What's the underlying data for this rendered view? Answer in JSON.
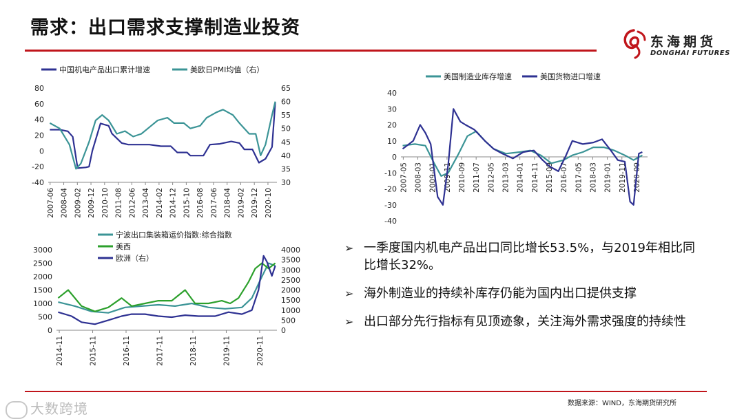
{
  "page": {
    "title": "需求：出口需求支撑制造业投资",
    "source": "数据来源：WIND，东海期货研究所",
    "watermark": "大数跨境"
  },
  "logo": {
    "cn": "东海期货",
    "en": "DONGHAI FUTURES",
    "color": "#c0151b"
  },
  "bullets": [
    {
      "text": "一季度国内机电产品出口同比增长53.5%，与2019年相比同比增长32%。"
    },
    {
      "text": "海外制造业的持续补库存仍能为国内出口提供支撑"
    },
    {
      "text": "出口部分先行指标有见顶迹象，关注海外需求强度的持续性"
    }
  ],
  "chart_data": [
    {
      "type": "line",
      "legend": [
        "中国机电产品出口累计增速",
        "美欧日PMI均值（右）"
      ],
      "colors": [
        "#2e3192",
        "#3b9496"
      ],
      "x_ticks": [
        "2007-06",
        "2008-04",
        "2009-02",
        "2009-12",
        "2010-10",
        "2011-08",
        "2012-06",
        "2013-04",
        "2014-02",
        "2014-12",
        "2015-10",
        "2016-08",
        "2017-06",
        "2018-04",
        "2019-02",
        "2019-12",
        "2020-10"
      ],
      "y_left": {
        "range": [
          -40,
          80
        ],
        "ticks": [
          80,
          60,
          40,
          20,
          0,
          -20,
          -40
        ]
      },
      "y_right": {
        "range": [
          30,
          65
        ],
        "ticks": [
          65,
          60,
          55,
          50,
          45,
          40,
          35,
          30
        ]
      },
      "series": [
        {
          "name": "中国机电产品出口累计增速",
          "axis": "left",
          "x": [
            2007.4,
            2008.0,
            2008.5,
            2008.8,
            2009.1,
            2009.6,
            2009.8,
            2010.0,
            2010.5,
            2011.0,
            2011.2,
            2011.8,
            2012.2,
            2012.8,
            2013.5,
            2014.2,
            2014.8,
            2015.2,
            2015.8,
            2016.0,
            2016.8,
            2017.2,
            2017.8,
            2018.5,
            2019.0,
            2019.3,
            2019.8,
            2020.2,
            2020.6,
            2021.0,
            2021.2
          ],
          "values": [
            27,
            27,
            25,
            18,
            -22,
            -21,
            -20,
            0,
            35,
            32,
            22,
            10,
            8,
            8,
            8,
            6,
            6,
            -2,
            -2,
            -6,
            -6,
            8,
            9,
            12,
            10,
            2,
            2,
            -15,
            -10,
            5,
            62
          ]
        },
        {
          "name": "美欧日PMI均值（右）",
          "axis": "right",
          "x": [
            2007.4,
            2008.0,
            2008.6,
            2009.0,
            2009.3,
            2009.8,
            2010.2,
            2010.6,
            2011.0,
            2011.5,
            2012.0,
            2012.5,
            2013.0,
            2013.6,
            2014.0,
            2014.6,
            2015.0,
            2015.6,
            2016.0,
            2016.6,
            2017.0,
            2017.6,
            2018.0,
            2018.6,
            2019.0,
            2019.6,
            2020.0,
            2020.3,
            2020.6,
            2021.0,
            2021.2
          ],
          "values": [
            52,
            50,
            44,
            35,
            37,
            45,
            53,
            55,
            53,
            48,
            49,
            47,
            48,
            51,
            53,
            54,
            52,
            52,
            50,
            51,
            54,
            56,
            57,
            55,
            52,
            48,
            48,
            40,
            44,
            55,
            60
          ]
        }
      ]
    },
    {
      "type": "line",
      "legend": [
        "美国制造业库存增速",
        "美国货物进口增速"
      ],
      "colors": [
        "#3b9496",
        "#2e3192"
      ],
      "x_ticks": [
        "2007-05",
        "2008-03",
        "2009-01",
        "2009-11",
        "2010-09",
        "2011-07",
        "2012-05",
        "2013-03",
        "2014-01",
        "2014-11",
        "2015-09",
        "2016-07",
        "2017-05",
        "2018-03",
        "2019-01",
        "2019-11",
        "2020-09"
      ],
      "y_axis": {
        "range": [
          -40,
          40
        ],
        "ticks": [
          40,
          30,
          20,
          10,
          0,
          -10,
          -20,
          -30,
          -40
        ]
      },
      "series": [
        {
          "name": "美国制造业库存增速",
          "x": [
            2007.3,
            2008.0,
            2008.6,
            2009.1,
            2009.5,
            2009.9,
            2010.5,
            2011.0,
            2011.5,
            2012.0,
            2012.5,
            2013.2,
            2014.0,
            2014.6,
            2015.2,
            2015.8,
            2016.5,
            2017.0,
            2017.6,
            2018.2,
            2018.8,
            2019.4,
            2020.0,
            2020.5,
            2021.0
          ],
          "values": [
            7,
            8,
            7,
            -4,
            -12,
            -10,
            2,
            13,
            16,
            10,
            5,
            2,
            3,
            4,
            1,
            -4,
            -2,
            1,
            3,
            6,
            6,
            4,
            1,
            -2,
            1
          ]
        },
        {
          "name": "美国货物进口增速",
          "x": [
            2007.3,
            2007.9,
            2008.3,
            2008.6,
            2008.9,
            2009.3,
            2009.6,
            2009.9,
            2010.2,
            2010.6,
            2010.9,
            2011.4,
            2012.0,
            2012.5,
            2013.0,
            2013.6,
            2014.2,
            2014.8,
            2015.3,
            2015.7,
            2016.2,
            2016.6,
            2017.0,
            2017.6,
            2018.2,
            2018.7,
            2019.2,
            2019.6,
            2020.0,
            2020.3,
            2020.5,
            2020.8,
            2021.0
          ],
          "values": [
            5,
            10,
            20,
            15,
            8,
            -25,
            -30,
            -5,
            30,
            22,
            20,
            17,
            10,
            5,
            2,
            -1,
            3,
            4,
            -2,
            -6,
            -9,
            0,
            10,
            8,
            9,
            11,
            4,
            -2,
            -3,
            -28,
            -30,
            2,
            3
          ]
        }
      ]
    },
    {
      "type": "line",
      "legend": [
        "宁波出口集装箱运价指数:综合指数",
        "美西",
        "欧洲（右）"
      ],
      "colors": [
        "#3b9496",
        "#2ca02c",
        "#2e3192"
      ],
      "x_ticks": [
        "2014-11",
        "2015-11",
        "2016-11",
        "2017-11",
        "2018-11",
        "2019-11",
        "2020-11"
      ],
      "y_left": {
        "range": [
          0,
          3000
        ],
        "ticks": [
          3000,
          2500,
          2000,
          1500,
          1000,
          500,
          0
        ]
      },
      "y_right": {
        "range": [
          0,
          4000
        ],
        "ticks": [
          4000,
          3500,
          3000,
          2500,
          2000,
          1500,
          1000,
          500,
          0
        ]
      },
      "series": [
        {
          "name": "宁波出口集装箱运价指数:综合指数",
          "axis": "left",
          "x": [
            2014.8,
            2015.3,
            2015.8,
            2016.3,
            2016.8,
            2017.3,
            2017.8,
            2018.3,
            2018.8,
            2019.3,
            2019.8,
            2020.3,
            2020.6,
            2020.9,
            2021.1,
            2021.3
          ],
          "values": [
            1050,
            900,
            700,
            650,
            850,
            900,
            950,
            900,
            1000,
            850,
            800,
            850,
            1200,
            2000,
            2500,
            2400
          ]
        },
        {
          "name": "美西",
          "axis": "left",
          "x": [
            2014.8,
            2015.1,
            2015.5,
            2015.9,
            2016.3,
            2016.7,
            2017.0,
            2017.4,
            2017.8,
            2018.2,
            2018.6,
            2018.9,
            2019.3,
            2019.7,
            2019.95,
            2020.2,
            2020.5,
            2020.7,
            2020.9,
            2021.1,
            2021.3
          ],
          "values": [
            1200,
            1500,
            900,
            700,
            850,
            1200,
            900,
            1000,
            1100,
            1100,
            1500,
            1000,
            1000,
            1100,
            1000,
            1200,
            1800,
            2300,
            2500,
            2300,
            2500
          ]
        },
        {
          "name": "欧洲（右）",
          "axis": "right",
          "x": [
            2014.8,
            2015.2,
            2015.5,
            2015.9,
            2016.3,
            2016.7,
            2017.0,
            2017.4,
            2017.8,
            2018.2,
            2018.6,
            2019.0,
            2019.5,
            2019.9,
            2020.3,
            2020.6,
            2020.8,
            2020.95,
            2021.05,
            2021.2,
            2021.3
          ],
          "values": [
            900,
            700,
            400,
            300,
            500,
            700,
            800,
            800,
            700,
            650,
            750,
            700,
            700,
            900,
            800,
            1000,
            2000,
            3700,
            3400,
            2700,
            3200
          ]
        }
      ]
    }
  ]
}
